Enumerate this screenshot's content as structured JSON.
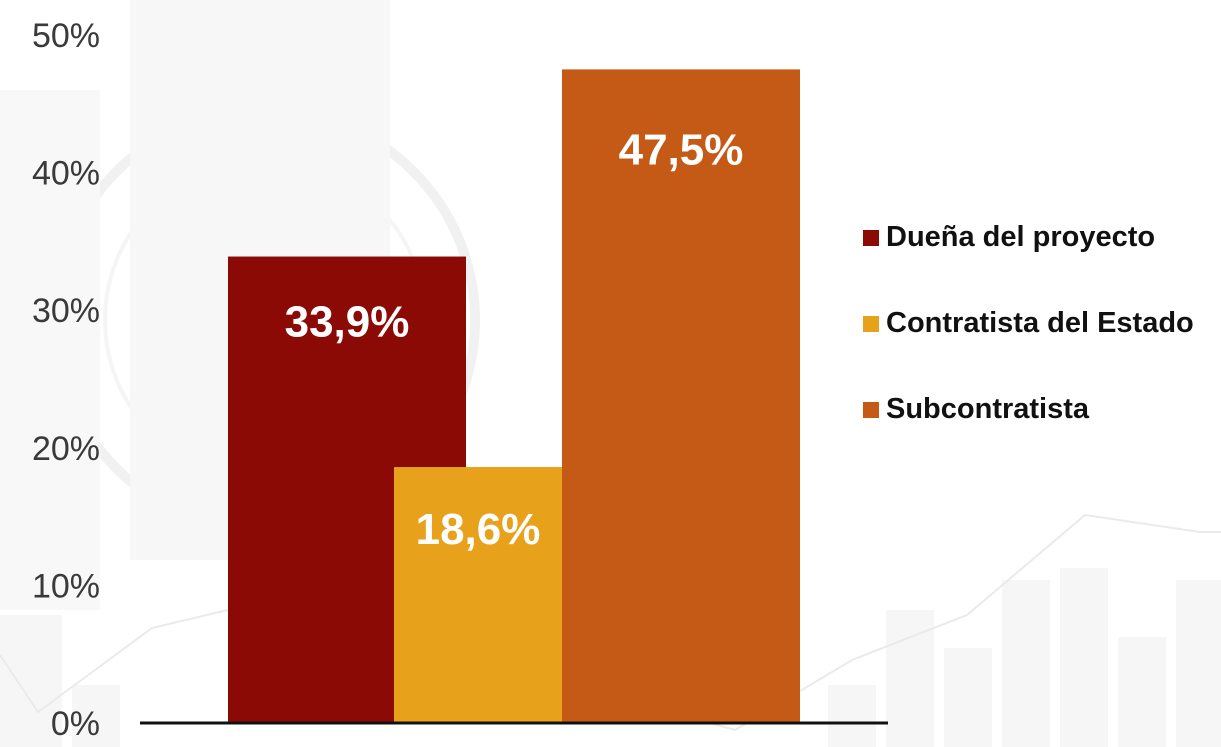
{
  "chart_data": {
    "type": "bar",
    "title": "",
    "xlabel": "",
    "ylabel": "",
    "ylim": [
      0,
      50
    ],
    "yticks": [
      "0%",
      "10%",
      "20%",
      "30%",
      "40%",
      "50%"
    ],
    "ytick_values": [
      0,
      10,
      20,
      30,
      40,
      50
    ],
    "grid": false,
    "legend_position": "right",
    "series": [
      {
        "name": "Dueña del proyecto",
        "value": 33.9,
        "label": "33,9%",
        "color": "#8B0A06"
      },
      {
        "name": "Contratista del Estado",
        "value": 18.6,
        "label": "18,6%",
        "color": "#E8A11A"
      },
      {
        "name": "Subcontratista",
        "value": 47.5,
        "label": "47,5%",
        "color": "#C45A16"
      }
    ]
  }
}
